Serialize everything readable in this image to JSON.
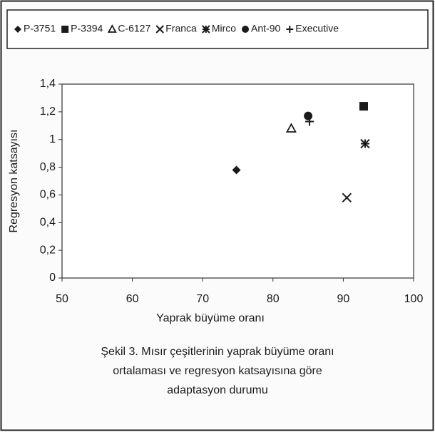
{
  "chart_data": {
    "type": "scatter",
    "xlabel": "Yaprak büyüme oranı",
    "ylabel": "Regresyon katsayısı",
    "caption": [
      "Şekil 3. Mısır çeşitlerinin yaprak büyüme oranı",
      "ortalaması ve regresyon katsayısına göre",
      "adaptasyon durumu"
    ],
    "xlim": [
      50,
      100
    ],
    "xticks": [
      50,
      60,
      70,
      80,
      90,
      100
    ],
    "ylim": [
      0,
      1.4
    ],
    "yticks": [
      0,
      {
        "value": 0.2,
        "label": "0,2"
      },
      {
        "value": 0.4,
        "label": "0,4"
      },
      {
        "value": 0.6,
        "label": "0,6"
      },
      {
        "value": 0.8,
        "label": "0,8"
      },
      1,
      {
        "value": 1.2,
        "label": "1,2"
      },
      {
        "value": 1.4,
        "label": "1,4"
      }
    ],
    "legend": "top",
    "series": [
      {
        "name": "P-3751",
        "color": "#1a1a1a",
        "marker": "diamond",
        "x": [
          74.8
        ],
        "values": [
          0.78
        ]
      },
      {
        "name": "P-3394",
        "color": "#1a1a1a",
        "marker": "square",
        "x": [
          92.9
        ],
        "values": [
          1.24
        ]
      },
      {
        "name": "C-6127",
        "color": "#1a1a1a",
        "marker": "triangle",
        "x": [
          82.6
        ],
        "values": [
          1.08
        ]
      },
      {
        "name": "Franca",
        "color": "#1a1a1a",
        "marker": "x",
        "x": [
          90.5
        ],
        "values": [
          0.58
        ]
      },
      {
        "name": "Mirco",
        "color": "#1a1a1a",
        "marker": "star",
        "x": [
          93.1
        ],
        "values": [
          0.97
        ]
      },
      {
        "name": "Ant-90",
        "color": "#1a1a1a",
        "marker": "circle",
        "x": [
          85
        ],
        "values": [
          1.17
        ]
      },
      {
        "name": "Executive",
        "color": "#1a1a1a",
        "marker": "plus",
        "x": [
          85.2
        ],
        "values": [
          1.13
        ]
      }
    ]
  }
}
